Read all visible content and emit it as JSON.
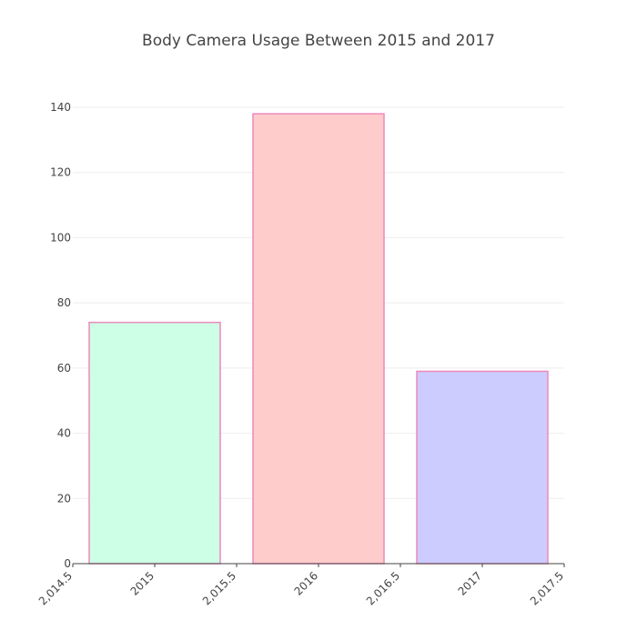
{
  "chart_data": {
    "type": "bar",
    "title": "Body Camera Usage Between 2015 and 2017",
    "xlabel": "",
    "ylabel": "",
    "categories": [
      "2015",
      "2016",
      "2017"
    ],
    "x": [
      2015,
      2016,
      2017
    ],
    "values": [
      74,
      138,
      59
    ],
    "bar_colors": [
      "#ccffe6",
      "#ffcccc",
      "#ccccff"
    ],
    "bar_outline_color": "#ee88bb",
    "ylim": [
      0,
      140
    ],
    "xlim": [
      2014.5,
      2017.5
    ],
    "y_ticks": [
      "0",
      "20",
      "40",
      "60",
      "80",
      "100",
      "120",
      "140"
    ],
    "x_tick_labels": [
      "2,014.5",
      "2015",
      "2,015.5",
      "2016",
      "2,016.5",
      "2017",
      "2,017.5"
    ],
    "grid": true,
    "legend": false
  }
}
